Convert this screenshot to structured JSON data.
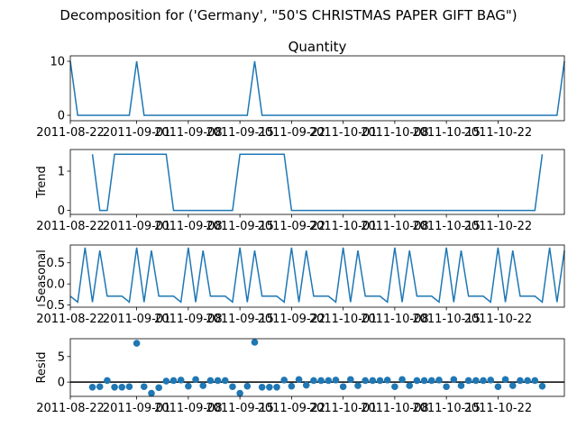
{
  "figure_title": "Decomposition for ('Germany', \"50'S CHRISTMAS PAPER GIFT BAG\")",
  "colors": {
    "line": "#1f77b4",
    "axis": "#000000",
    "zero_line": "#000000"
  },
  "x_axis": {
    "ticks": [
      {
        "x": 0,
        "label": "2011-08-22"
      },
      {
        "x": 9,
        "label": "2011-09-01"
      },
      {
        "x": 16,
        "label": "2011-09-08"
      },
      {
        "x": 23,
        "label": "2011-09-15"
      },
      {
        "x": 30,
        "label": "2011-09-22"
      },
      {
        "x": 37,
        "label": "2011-10-01"
      },
      {
        "x": 44,
        "label": "2011-10-08"
      },
      {
        "x": 51,
        "label": "2011-10-15"
      },
      {
        "x": 58,
        "label": "2011-10-22"
      }
    ]
  },
  "chart_data": [
    {
      "type": "line",
      "title": "Quantity",
      "ylabel": "",
      "ylim": [
        -1,
        11
      ],
      "yticks": [
        0,
        10
      ],
      "x_range": [
        0,
        67
      ],
      "x": [
        0,
        1,
        2,
        3,
        4,
        5,
        6,
        7,
        8,
        9,
        10,
        11,
        12,
        13,
        14,
        15,
        16,
        17,
        18,
        19,
        20,
        21,
        22,
        23,
        24,
        25,
        26,
        27,
        28,
        29,
        30,
        31,
        32,
        33,
        34,
        35,
        36,
        37,
        38,
        39,
        40,
        41,
        42,
        43,
        44,
        45,
        46,
        47,
        48,
        49,
        50,
        51,
        52,
        53,
        54,
        55,
        56,
        57,
        58,
        59,
        60,
        61,
        62,
        63,
        64,
        65,
        66,
        67
      ],
      "values": [
        10,
        0,
        0,
        0,
        0,
        0,
        0,
        0,
        0,
        10,
        0,
        0,
        0,
        0,
        0,
        0,
        0,
        0,
        0,
        0,
        0,
        0,
        0,
        0,
        0,
        10,
        0,
        0,
        0,
        0,
        0,
        0,
        0,
        0,
        0,
        0,
        0,
        0,
        0,
        0,
        0,
        0,
        0,
        0,
        0,
        0,
        0,
        0,
        0,
        0,
        0,
        0,
        0,
        0,
        0,
        0,
        0,
        0,
        0,
        0,
        0,
        0,
        0,
        0,
        0,
        0,
        0,
        10
      ]
    },
    {
      "type": "line",
      "title": "",
      "ylabel": "Trend",
      "ylim": [
        -0.1,
        1.55
      ],
      "yticks": [
        0,
        1
      ],
      "x_range": [
        0,
        67
      ],
      "x": [
        3,
        4,
        5,
        6,
        7,
        8,
        9,
        10,
        11,
        12,
        13,
        14,
        15,
        16,
        17,
        18,
        19,
        20,
        21,
        22,
        23,
        24,
        25,
        26,
        27,
        28,
        29,
        30,
        31,
        32,
        33,
        34,
        35,
        36,
        37,
        38,
        39,
        40,
        41,
        42,
        43,
        44,
        45,
        46,
        47,
        48,
        49,
        50,
        51,
        52,
        53,
        54,
        55,
        56,
        57,
        58,
        59,
        60,
        61,
        62,
        63,
        64
      ],
      "values": [
        1.43,
        0,
        0,
        1.43,
        1.43,
        1.43,
        1.43,
        1.43,
        1.43,
        1.43,
        1.43,
        0,
        0,
        0,
        0,
        0,
        0,
        0,
        0,
        0,
        1.43,
        1.43,
        1.43,
        1.43,
        1.43,
        1.43,
        1.43,
        0,
        0,
        0,
        0,
        0,
        0,
        0,
        0,
        0,
        0,
        0,
        0,
        0,
        0,
        0,
        0,
        0,
        0,
        0,
        0,
        0,
        0,
        0,
        0,
        0,
        0,
        0,
        0,
        0,
        0,
        0,
        0,
        0,
        0,
        1.43
      ]
    },
    {
      "type": "line",
      "title": "",
      "ylabel": "Seasonal",
      "ylim": [
        -0.55,
        0.92
      ],
      "yticks": [
        -0.5,
        0.0,
        0.5
      ],
      "ytick_labels": [
        "−0.5",
        "0.0",
        "0.5"
      ],
      "x_range": [
        0,
        67
      ],
      "x": [
        0,
        1,
        2,
        3,
        4,
        5,
        6,
        7,
        8,
        9,
        10,
        11,
        12,
        13,
        14,
        15,
        16,
        17,
        18,
        19,
        20,
        21,
        22,
        23,
        24,
        25,
        26,
        27,
        28,
        29,
        30,
        31,
        32,
        33,
        34,
        35,
        36,
        37,
        38,
        39,
        40,
        41,
        42,
        43,
        44,
        45,
        46,
        47,
        48,
        49,
        50,
        51,
        52,
        53,
        54,
        55,
        56,
        57,
        58,
        59,
        60,
        61,
        62,
        63,
        64,
        65,
        66,
        67
      ],
      "values": [
        -0.29,
        -0.43,
        0.86,
        -0.43,
        0.79,
        -0.29,
        -0.29,
        -0.29,
        -0.43,
        0.86,
        -0.43,
        0.79,
        -0.29,
        -0.29,
        -0.29,
        -0.43,
        0.86,
        -0.43,
        0.79,
        -0.29,
        -0.29,
        -0.29,
        -0.43,
        0.86,
        -0.43,
        0.79,
        -0.29,
        -0.29,
        -0.29,
        -0.43,
        0.86,
        -0.43,
        0.79,
        -0.29,
        -0.29,
        -0.29,
        -0.43,
        0.86,
        -0.43,
        0.79,
        -0.29,
        -0.29,
        -0.29,
        -0.43,
        0.86,
        -0.43,
        0.79,
        -0.29,
        -0.29,
        -0.29,
        -0.43,
        0.86,
        -0.43,
        0.79,
        -0.29,
        -0.29,
        -0.29,
        -0.43,
        0.86,
        -0.43,
        0.79,
        -0.29,
        -0.29,
        -0.29,
        -0.43,
        0.86,
        -0.43,
        0.79
      ]
    },
    {
      "type": "scatter",
      "title": "",
      "ylabel": "Resid",
      "ylim": [
        -2.8,
        8.5
      ],
      "yticks": [
        0,
        5
      ],
      "zero_line": true,
      "x_range": [
        0,
        67
      ],
      "x": [
        3,
        4,
        5,
        6,
        7,
        8,
        9,
        10,
        11,
        12,
        13,
        14,
        15,
        16,
        17,
        18,
        19,
        20,
        21,
        22,
        23,
        24,
        25,
        26,
        27,
        28,
        29,
        30,
        31,
        32,
        33,
        34,
        35,
        36,
        37,
        38,
        39,
        40,
        41,
        42,
        43,
        44,
        45,
        46,
        47,
        48,
        49,
        50,
        51,
        52,
        53,
        54,
        55,
        56,
        57,
        58,
        59,
        60,
        61,
        62,
        63,
        64
      ],
      "values": [
        -1.0,
        -0.9,
        0.3,
        -1.0,
        -1.0,
        -0.9,
        7.6,
        -0.9,
        -2.2,
        -1.1,
        0.2,
        0.3,
        0.4,
        -0.8,
        0.5,
        -0.7,
        0.3,
        0.3,
        0.3,
        -0.9,
        -2.2,
        -0.8,
        7.8,
        -1.0,
        -1.0,
        -1.0,
        0.4,
        -0.8,
        0.5,
        -0.6,
        0.3,
        0.3,
        0.3,
        0.4,
        -0.9,
        0.5,
        -0.7,
        0.3,
        0.3,
        0.3,
        0.4,
        -0.9,
        0.5,
        -0.7,
        0.3,
        0.3,
        0.3,
        0.4,
        -0.9,
        0.5,
        -0.7,
        0.3,
        0.3,
        0.3,
        0.4,
        -0.9,
        0.5,
        -0.7,
        0.3,
        0.3,
        0.3,
        -0.8
      ]
    }
  ]
}
